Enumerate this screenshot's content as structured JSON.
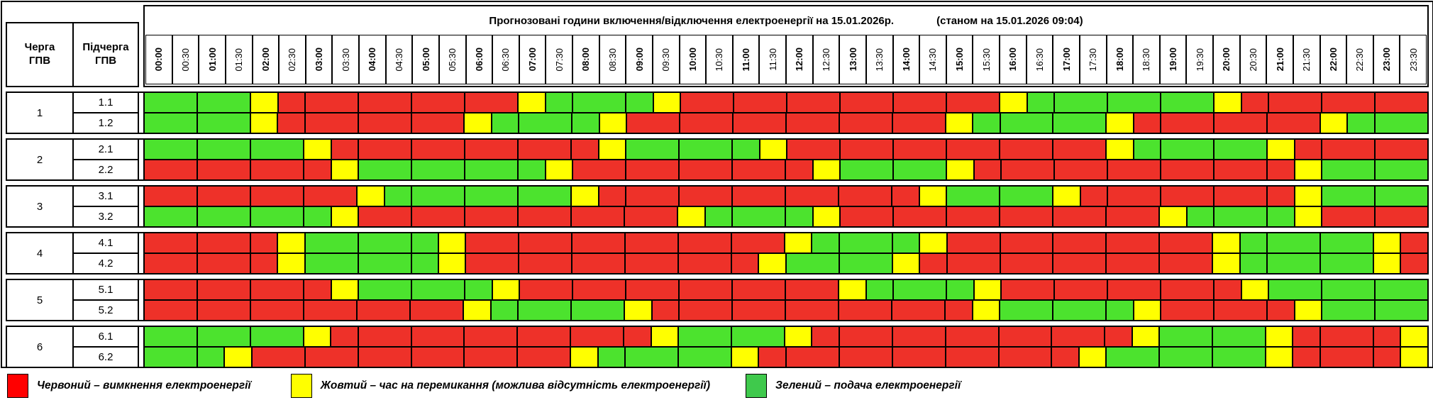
{
  "header": {
    "title": "Прогнозовані години включення/відключення електроенергії на 15.01.2026р.",
    "status": "(станом на 15.01.2026 09:04)",
    "col1": "Черга\nГПВ",
    "col2": "Підчерга\nГПВ"
  },
  "times": [
    "00:00",
    "00:30",
    "01:00",
    "01:30",
    "02:00",
    "02:30",
    "03:00",
    "03:30",
    "04:00",
    "04:30",
    "05:00",
    "05:30",
    "06:00",
    "06:30",
    "07:00",
    "07:30",
    "08:00",
    "08:30",
    "09:00",
    "09:30",
    "10:00",
    "10:30",
    "11:00",
    "11:30",
    "12:00",
    "12:30",
    "13:00",
    "13:30",
    "14:00",
    "14:30",
    "15:00",
    "15:30",
    "16:00",
    "16:30",
    "17:00",
    "17:30",
    "18:00",
    "18:30",
    "19:00",
    "19:30",
    "20:00",
    "20:30",
    "21:00",
    "21:30",
    "22:00",
    "22:30",
    "23:00",
    "23:30"
  ],
  "colors": {
    "R": "#ee3129",
    "Y": "#ffff00",
    "G": "#4ce32e"
  },
  "queues": [
    {
      "label": "1",
      "rows": [
        {
          "label": "1.1",
          "cells": "GGGGYRRRRRRRRRYGGGGYRRRRRRRRRRRRYGGGGGGGYRRRRRRR"
        },
        {
          "label": "1.2",
          "cells": "GGGGYRRRRRRRYGGGGYRRRRRRRRRRRRYGGGGGYRRRRRRRYGGG"
        }
      ]
    },
    {
      "label": "2",
      "rows": [
        {
          "label": "2.1",
          "cells": "GGGGGGYRRRRRRRRRRYGGGGGYRRRRRRRRRRRRYGGGGGYRRRRR"
        },
        {
          "label": "2.2",
          "cells": "RRRRRRRYGGGGGGGYRRRRRRRRRYGGGGYRRRRRRRRRRRRYGGGG"
        }
      ]
    },
    {
      "label": "3",
      "rows": [
        {
          "label": "3.1",
          "cells": "RRRRRRRRYGGGGGGGYRRRRRRRRRRRRYGGGGYRRRRRRRRYGGGG"
        },
        {
          "label": "3.2",
          "cells": "GGGGGGGYRRRRRRRRRRRRYGGGGYRRRRRRRRRRRRYGGGGYRRRR"
        }
      ]
    },
    {
      "label": "4",
      "rows": [
        {
          "label": "4.1",
          "cells": "RRRRRYGGGGGYRRRRRRRRRRRRYGGGGYRRRRRRRRRRYGGGGGYR"
        },
        {
          "label": "4.2",
          "cells": "RRRRRYGGGGGYRRRRRRRRRRRYGGGGYRRRRRRRRRRRYGGGGGYR"
        }
      ]
    },
    {
      "label": "5",
      "rows": [
        {
          "label": "5.1",
          "cells": "RRRRRRRYGGGGGYRRRRRRRRRRRRYGGGGYRRRRRRRRRYGGGGGG"
        },
        {
          "label": "5.2",
          "cells": "RRRRRRRRRRRRYGGGGGYRRRRRRRRRRRRYGGGGGYRRRRRYGGGG"
        }
      ]
    },
    {
      "label": "6",
      "rows": [
        {
          "label": "6.1",
          "cells": "GGGGGGYRRRRRRRRRRRRYGGGGYRRRRRRRRRRRRYGGGGYRRRRY"
        },
        {
          "label": "6.2",
          "cells": "GGGYRRRRRRRRRRRRYGGGGGYRRRRRRRRRRRRYGGGGGGYRRRRY"
        }
      ]
    }
  ],
  "legend": [
    {
      "color": "#ff0000",
      "label": "Червоний – вимкнення електроенергії"
    },
    {
      "color": "#ffff00",
      "label": "Жовтий – час на перемикання (можлива відсутність електроенергії)"
    },
    {
      "color": "#3fc94c",
      "label": "Зелений – подача електроенергії"
    }
  ]
}
